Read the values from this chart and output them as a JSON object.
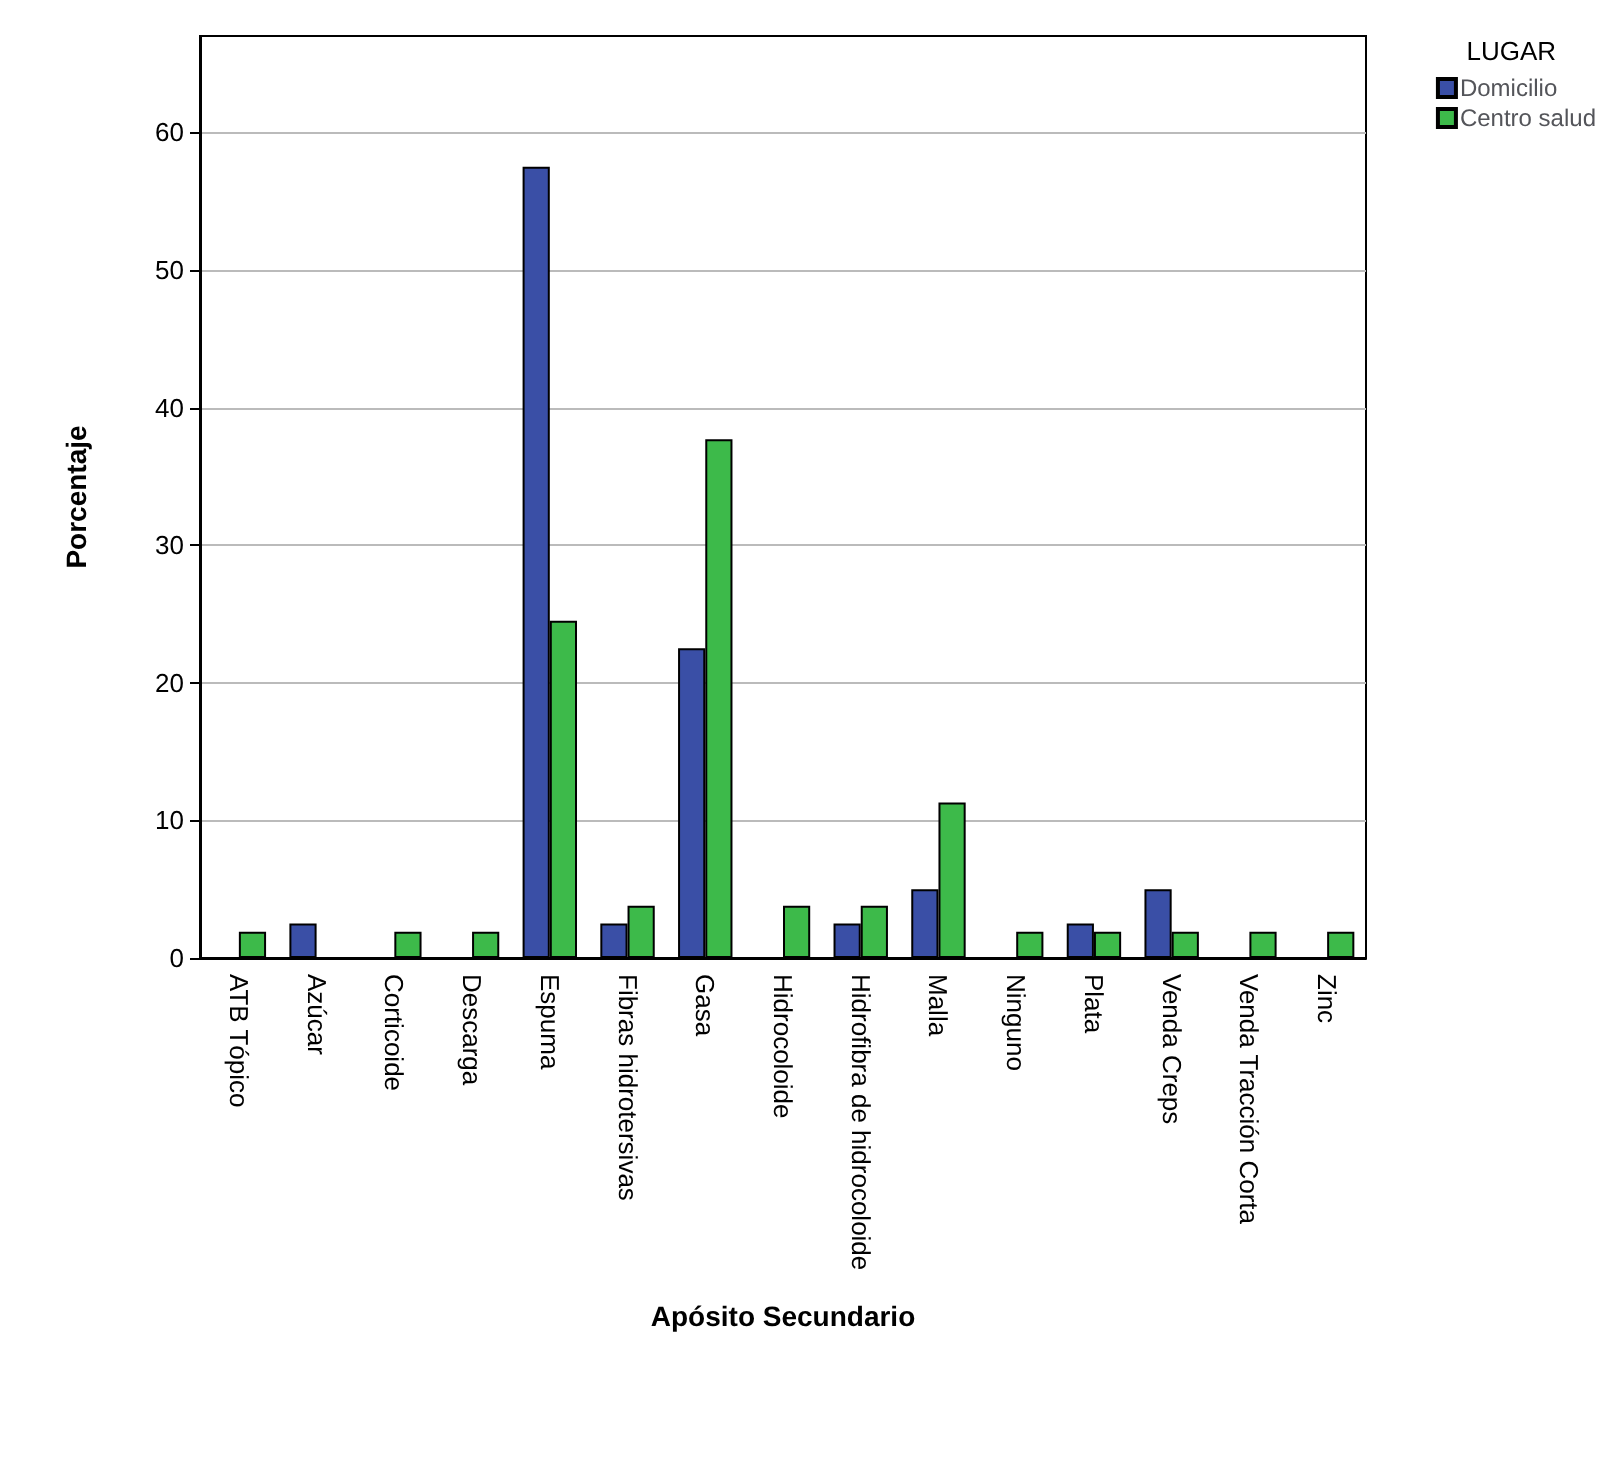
{
  "chart_data": {
    "type": "bar",
    "xlabel": "Apósito Secundario",
    "ylabel": "Porcentaje",
    "legend_title": "LUGAR",
    "legend": "top right",
    "grid": "y",
    "categories": [
      "ATB Tópico",
      "Azúcar",
      "Corticoide",
      "Descarga",
      "Espuma",
      "Fibras hidrotersivas",
      "Gasa",
      "Hidrocoloide",
      "Hidrofibra de hidrocoloide",
      "Malla",
      "Ninguno",
      "Plata",
      "Venda Creps",
      "Venda Tracción Corta",
      "Zinc"
    ],
    "series": [
      {
        "name": "Domicilio",
        "color": "#3a4fa6",
        "values": [
          0,
          2.5,
          0,
          0,
          57.5,
          2.5,
          22.5,
          0,
          2.5,
          5,
          0,
          2.5,
          5,
          0,
          0
        ]
      },
      {
        "name": "Centro salud",
        "color": "#3dba4a",
        "values": [
          1.9,
          0,
          1.9,
          1.9,
          24.5,
          3.8,
          37.7,
          3.8,
          3.8,
          11.3,
          1.9,
          1.9,
          1.9,
          1.9,
          1.9
        ]
      }
    ],
    "ylim": [
      0,
      67
    ],
    "yticks": [
      0,
      10,
      20,
      30,
      40,
      50,
      60
    ]
  }
}
